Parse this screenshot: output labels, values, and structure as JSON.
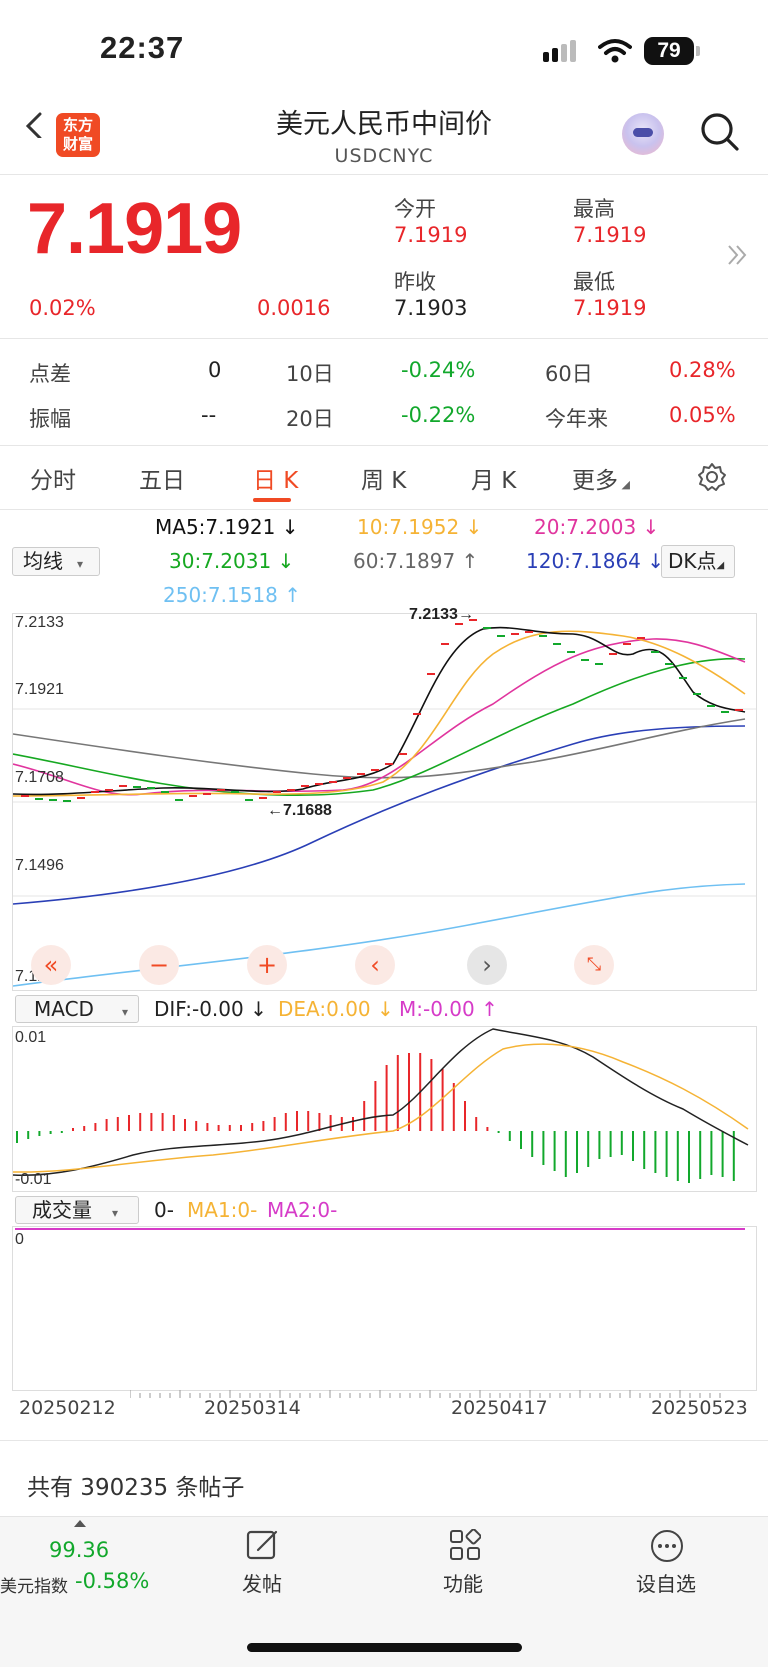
{
  "status_bar": {
    "time": "22:37",
    "battery": "79"
  },
  "header": {
    "logo_text": "东方\n财富",
    "title": "美元人民币中间价",
    "subtitle": "USDCNYC"
  },
  "quote": {
    "price": "7.1919",
    "change_pct": "0.02%",
    "change": "0.0016",
    "open_label": "今开",
    "open": "7.1919",
    "high_label": "最高",
    "high": "7.1919",
    "prev_close_label": "昨收",
    "prev_close": "7.1903",
    "low_label": "最低",
    "low": "7.1919",
    "more_icon": "double-chevron-right"
  },
  "stats": {
    "spread_label": "点差",
    "spread": "0",
    "d10_label": "10日",
    "d10": "-0.24%",
    "d60_label": "60日",
    "d60": "0.28%",
    "amplitude_label": "振幅",
    "amplitude": "--",
    "d20_label": "20日",
    "d20": "-0.22%",
    "ytd_label": "今年来",
    "ytd": "0.05%"
  },
  "tabs": [
    {
      "label": "分时"
    },
    {
      "label": "五日"
    },
    {
      "label": "日 K",
      "active": true
    },
    {
      "label": "周 K"
    },
    {
      "label": "月 K"
    },
    {
      "label": "更多"
    }
  ],
  "indicator_select": "均线",
  "ma_legend": {
    "ma5": "MA5:7.1921",
    "ma10": "10:7.1952",
    "ma20": "20:7.2003",
    "ma30": "30:7.2031",
    "ma60": "60:7.1897",
    "ma120": "120:7.1864",
    "ma250": "250:7.1518",
    "dk_button": "DK点"
  },
  "colors": {
    "up": "#e8262a",
    "down": "#12a82c",
    "ma5": "#111111",
    "ma10": "#f5b335",
    "ma20": "#e0359e",
    "ma30": "#16a821",
    "ma60": "#777777",
    "ma120": "#2a3fb6",
    "ma250": "#6fc0f2",
    "accent": "#f04a24"
  },
  "kline": {
    "y_labels": [
      "7.2133",
      "7.1921",
      "7.1708",
      "7.1496",
      "7.1284"
    ],
    "high_label": "7.2133",
    "low_label": "7.1688"
  },
  "chart_controls": [
    "double-left-icon",
    "zoom-out-icon",
    "zoom-in-icon",
    "left-icon",
    "right-icon",
    "fullscreen-icon"
  ],
  "macd": {
    "select": "MACD",
    "dif": "DIF:-0.00",
    "dea": "DEA:0.00",
    "m": "M:-0.00",
    "y_top": "0.01",
    "y_bottom": "-0.01"
  },
  "volume": {
    "select": "成交量",
    "value": "0-",
    "ma1": "MA1:0-",
    "ma2": "MA2:0-",
    "y_label": "0"
  },
  "x_dates": [
    "20250212",
    "20250314",
    "20250417",
    "20250523"
  ],
  "posts_text": "共有 390235 条帖子",
  "bottom_nav": {
    "index_value": "99.36",
    "index_name": "美元指数",
    "index_change": "-0.58%",
    "post": "发帖",
    "functions": "功能",
    "add_watch": "设自选"
  }
}
